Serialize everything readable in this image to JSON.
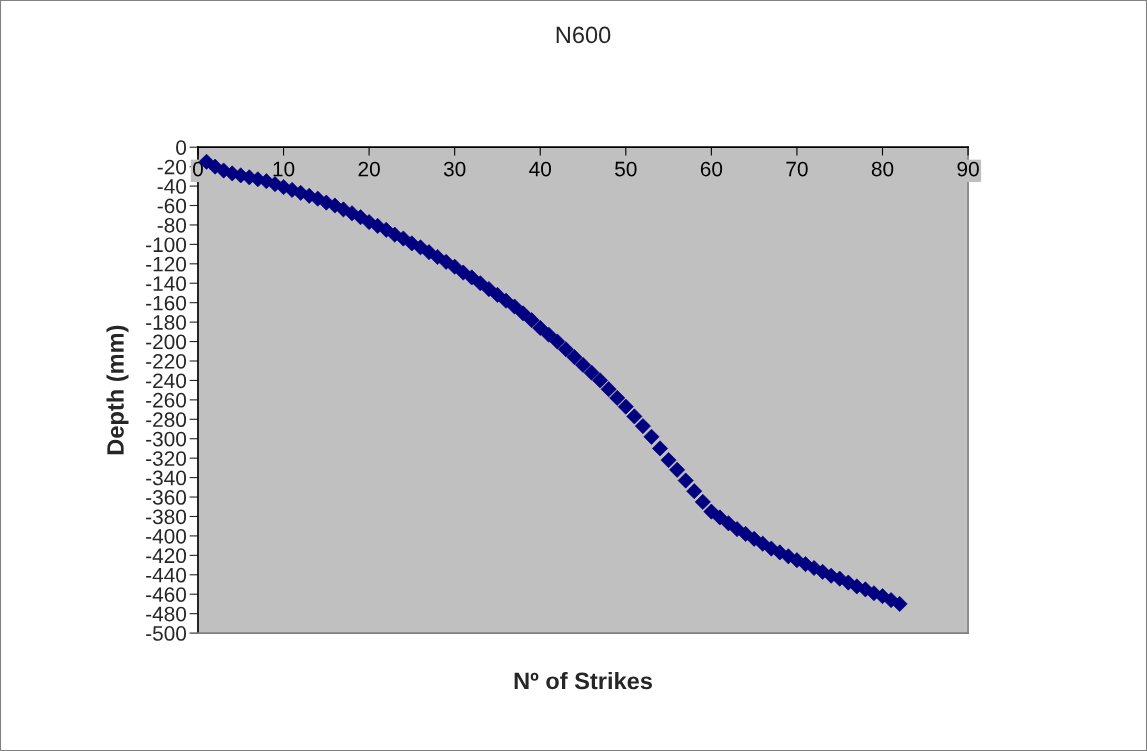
{
  "chart_data": {
    "type": "scatter",
    "title": "N600",
    "xlabel": "Nº of Strikes",
    "ylabel": "Depth (mm)",
    "x": [
      1,
      2,
      3,
      4,
      5,
      6,
      7,
      8,
      9,
      10,
      11,
      12,
      13,
      14,
      15,
      16,
      17,
      18,
      19,
      20,
      21,
      22,
      23,
      24,
      25,
      26,
      27,
      28,
      29,
      30,
      31,
      32,
      33,
      34,
      35,
      36,
      37,
      38,
      39,
      40,
      41,
      42,
      43,
      44,
      45,
      46,
      47,
      48,
      49,
      50,
      51,
      52,
      53,
      54,
      55,
      56,
      57,
      58,
      59,
      60,
      61,
      62,
      63,
      64,
      65,
      66,
      67,
      68,
      69,
      70,
      71,
      72,
      73,
      74,
      75,
      76,
      77,
      78,
      79,
      80,
      81,
      82
    ],
    "series": [
      {
        "color": "#000080",
        "values": [
          -15,
          -20,
          -24,
          -27,
          -29,
          -31,
          -33,
          -35,
          -38,
          -41,
          -44,
          -47,
          -50,
          -53,
          -57,
          -60,
          -64,
          -68,
          -72,
          -77,
          -81,
          -85,
          -90,
          -94,
          -99,
          -103,
          -108,
          -113,
          -118,
          -123,
          -129,
          -134,
          -140,
          -146,
          -152,
          -158,
          -164,
          -171,
          -178,
          -186,
          -193,
          -200,
          -208,
          -216,
          -224,
          -232,
          -240,
          -249,
          -258,
          -267,
          -277,
          -287,
          -298,
          -310,
          -322,
          -332,
          -343,
          -354,
          -365,
          -375,
          -381,
          -387,
          -393,
          -398,
          -403,
          -408,
          -413,
          -417,
          -421,
          -425,
          -429,
          -433,
          -437,
          -441,
          -444,
          -448,
          -452,
          -455,
          -459,
          -462,
          -466,
          -470
        ]
      }
    ],
    "xlim": [
      0,
      90
    ],
    "xticks": [
      0,
      10,
      20,
      30,
      40,
      50,
      60,
      70,
      80,
      90
    ],
    "ylim": [
      -500,
      0
    ],
    "yticks": [
      0,
      -20,
      -40,
      -60,
      -80,
      -100,
      -120,
      -140,
      -160,
      -180,
      -200,
      -220,
      -240,
      -260,
      -280,
      -300,
      -320,
      -340,
      -360,
      -380,
      -400,
      -420,
      -440,
      -460,
      -480,
      -500
    ],
    "marker": "diamond",
    "grid": false,
    "legend": false
  }
}
